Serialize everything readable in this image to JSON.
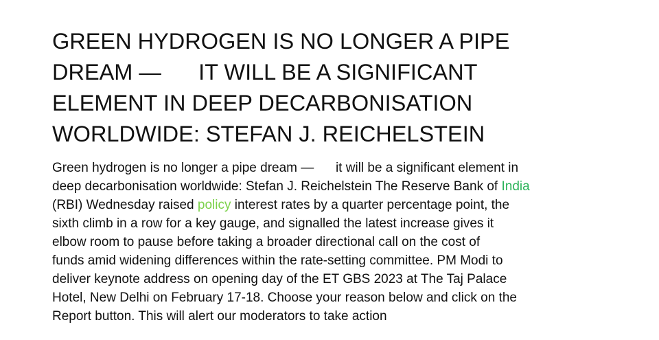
{
  "headline": {
    "line1": "GREEN HYDROGEN IS NO LONGER A PIPE",
    "line2": "DREAM —      IT WILL BE A SIGNIFICANT",
    "line3": "ELEMENT IN DEEP DECARBONISATION",
    "line4": "WORLDWIDE: STEFAN J. REICHELSTEIN"
  },
  "body": {
    "l1": "Green hydrogen is no longer a pipe dream —      it will be a significant element in",
    "l2_before": "deep decarbonisation worldwide: Stefan J. Reichelstein The Reserve Bank of ",
    "link_india": "India",
    "l3_before": "(RBI) Wednesday raised ",
    "link_policy": "policy",
    "l3_after": " interest rates by a quarter percentage point, the",
    "l4": "sixth climb in a row for a key gauge, and signalled the latest increase gives it",
    "l5": "elbow room to pause before taking a broader directional call on the cost of",
    "l6": "funds amid widening differences within the rate-setting committee. PM Modi to",
    "l7": "deliver keynote address on opening day of the ET GBS 2023 at The Taj Palace",
    "l8": "Hotel, New Delhi on February 17-18. Choose your reason below and click on the",
    "l9": "Report button. This will alert our moderators to take action"
  },
  "colors": {
    "text": "#111111",
    "link_india": "#2cb35a",
    "link_policy": "#7bd14a",
    "background": "#ffffff"
  }
}
